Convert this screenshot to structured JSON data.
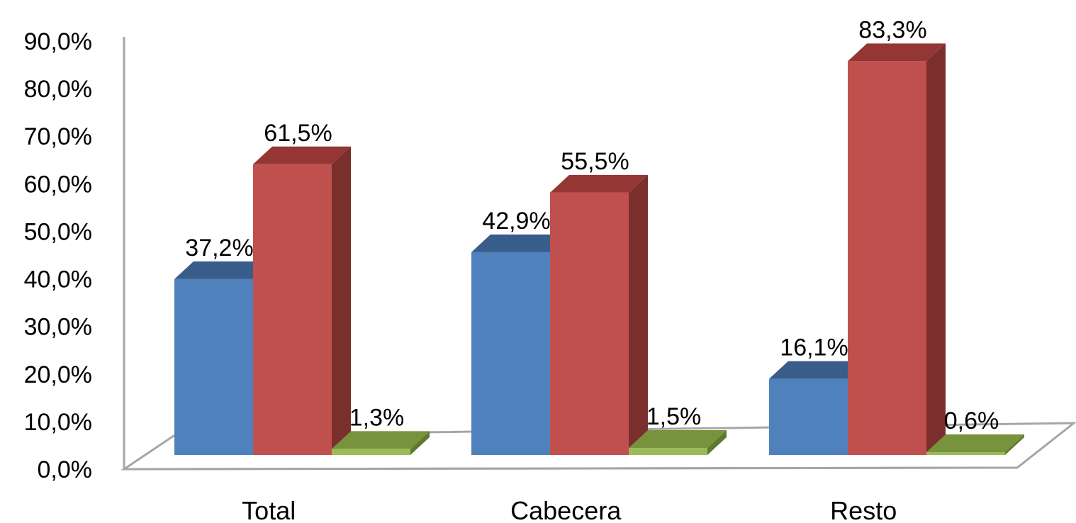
{
  "chart_data": {
    "type": "bar",
    "categories": [
      "Total",
      "Cabecera",
      "Resto"
    ],
    "series": [
      {
        "values": [
          37.2,
          42.9,
          16.1
        ],
        "labels": [
          "37,2%",
          "42,9%",
          "16,1%"
        ],
        "color": "#4F81BD",
        "top_color": "#385D8A",
        "side_color": "#2C4D75"
      },
      {
        "values": [
          61.5,
          55.5,
          83.3
        ],
        "labels": [
          "61,5%",
          "55,5%",
          "83,3%"
        ],
        "color": "#C0504D",
        "top_color": "#943634",
        "side_color": "#7A2F2D"
      },
      {
        "values": [
          1.3,
          1.5,
          0.6
        ],
        "labels": [
          "1,3%",
          "1,5%",
          "0,6%"
        ],
        "color": "#9BBB59",
        "top_color": "#77933C",
        "side_color": "#5F7A30"
      }
    ],
    "yticks": [
      "0,0%",
      "10,0%",
      "20,0%",
      "30,0%",
      "40,0%",
      "50,0%",
      "60,0%",
      "70,0%",
      "80,0%",
      "90,0%"
    ],
    "ylim": [
      0,
      90
    ],
    "three_d": true,
    "legend": "none",
    "title": "",
    "xlabel": "",
    "ylabel": ""
  }
}
